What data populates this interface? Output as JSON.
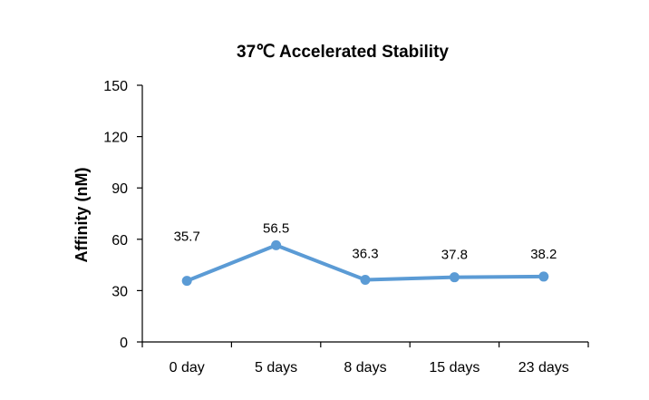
{
  "chart_data": {
    "type": "line",
    "title": "37℃ Accelerated Stability",
    "xlabel": "",
    "ylabel": "Affinity (nM)",
    "categories": [
      "0 day",
      "5 days",
      "8 days",
      "15 days",
      "23 days"
    ],
    "series": [
      {
        "values": [
          35.7,
          56.5,
          36.3,
          37.8,
          38.2
        ],
        "color": "#5b9bd5"
      }
    ],
    "data_labels": [
      "35.7",
      "56.5",
      "36.3",
      "37.8",
      "38.2"
    ],
    "ylim": [
      0,
      150
    ],
    "yticks": [
      0,
      30,
      60,
      90,
      120,
      150
    ],
    "ytick_labels": [
      "0",
      "30",
      "60",
      "90",
      "120",
      "150"
    ],
    "grid": false,
    "legend": "none",
    "colors": {
      "line": "#5b9bd5",
      "axis": "#000000"
    }
  }
}
